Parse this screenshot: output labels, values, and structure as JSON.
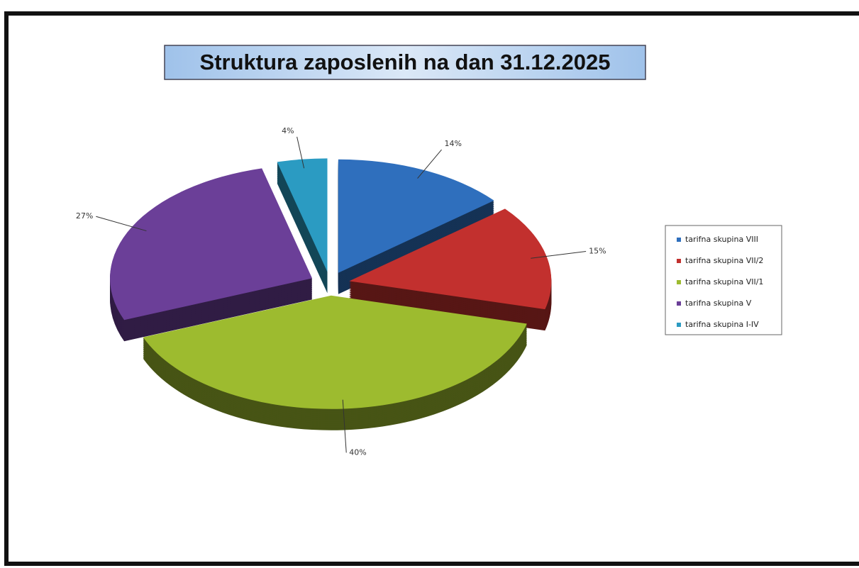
{
  "chart_data": {
    "type": "pie3d",
    "title": "Struktura zaposlenih na dan 31.12.2025",
    "categories": [
      "tarifna skupina VIII",
      "tarifna skupina VII/2",
      "tarifna skupina VII/1",
      "tarifna skupina V",
      "tarifna skupina I-IV"
    ],
    "values": [
      14,
      15,
      40,
      27,
      4
    ],
    "value_labels": [
      "14%",
      "15%",
      "40%",
      "27%",
      "4%"
    ],
    "colors": [
      "#2f6fbd",
      "#c2302e",
      "#9dbb2f",
      "#6b3f98",
      "#2b9bc2"
    ],
    "legend": "right"
  }
}
